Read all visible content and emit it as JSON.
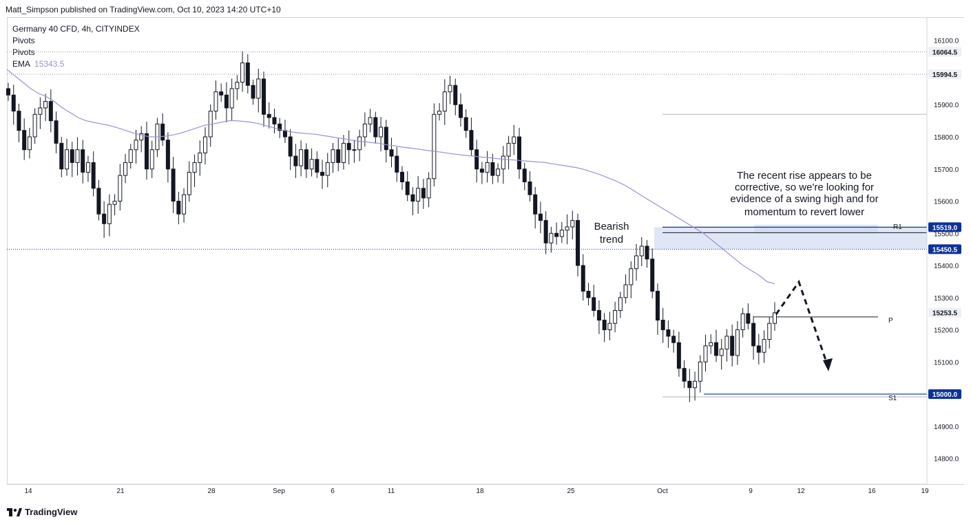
{
  "header": "Matt_Simpson published on TradingView.com, Oct 10, 2023 14:20 UTC+10",
  "legend": {
    "symbol": "Germany 40 CFD, 4h, CITYINDEX",
    "pivots1": "Pivots",
    "pivots2": "Pivots",
    "ema_label": "EMA",
    "ema_value": "15343.5"
  },
  "annotations": {
    "bearish_line1": "Bearish",
    "bearish_line2": "trend",
    "note_lines": [
      "The recent rise appears to be",
      "corrective, so we're looking for",
      "evidence of a swing high and for",
      "momentum to revert lower"
    ]
  },
  "pivot_labels": {
    "r1": "R1",
    "p": "P",
    "s1": "S1"
  },
  "footer": "TradingView",
  "colors": {
    "up": "#131722",
    "ema": "#9c8fd6",
    "zone": "#c5d3ee",
    "tag_dark": "#0c3299",
    "tag_light": "#eef0f4"
  },
  "chart_data": {
    "type": "candlestick",
    "ylim": [
      14720,
      16170
    ],
    "y_ticks": [
      14800,
      14900,
      15000,
      15100,
      15200,
      15300,
      15400,
      15500,
      15600,
      15700,
      15800,
      15900,
      16000,
      16100
    ],
    "y_tick_labels": [
      "14800.0",
      "14900.0",
      "15000.0",
      "15100.0",
      "15200.0",
      "15300.0",
      "15400.0",
      "15500.0",
      "15600.0",
      "15700.0",
      "15800.0",
      "15900.0",
      "16000.0",
      "16100.0"
    ],
    "x_ticks": [
      "14",
      "21",
      "28",
      "Sep",
      "6",
      "11",
      "18",
      "25",
      "Oct",
      "9",
      "12",
      "16",
      "19"
    ],
    "price_tags": [
      {
        "label": "16064.5",
        "value": 16064.5,
        "style": "light"
      },
      {
        "label": "15994.5",
        "value": 15994.5,
        "style": "light"
      },
      {
        "label": "15519.0",
        "value": 15519.0,
        "style": "dark"
      },
      {
        "label": "15450.5",
        "value": 15450.5,
        "style": "dark"
      },
      {
        "label": "15253.5",
        "value": 15253.5,
        "style": "light"
      },
      {
        "label": "15000.0",
        "value": 15000.0,
        "style": "dark"
      }
    ],
    "levels": [
      {
        "name": "dotted-high",
        "value": 16064.5
      },
      {
        "name": "dotted-2",
        "value": 15994.5
      },
      {
        "name": "dotted-support",
        "value": 15450.5
      },
      {
        "name": "pivot-line-upper",
        "value": 15870
      },
      {
        "name": "R1",
        "value": 15519
      },
      {
        "name": "R1-zone",
        "from": 15450.5,
        "to": 15519
      },
      {
        "name": "P",
        "value": 15240
      },
      {
        "name": "S1",
        "value": 15000
      }
    ],
    "series": [
      {
        "name": "Germany 40 CFD",
        "closes": [
          15930,
          15880,
          15820,
          15760,
          15800,
          15870,
          15890,
          15910,
          15850,
          15780,
          15700,
          15760,
          15720,
          15760,
          15690,
          15720,
          15640,
          15560,
          15530,
          15590,
          15600,
          15680,
          15720,
          15760,
          15790,
          15810,
          15700,
          15760,
          15840,
          15790,
          15700,
          15600,
          15560,
          15620,
          15690,
          15720,
          15750,
          15800,
          15880,
          15940,
          15930,
          15890,
          15950,
          15970,
          16030,
          15960,
          15920,
          15980,
          15870,
          15860,
          15840,
          15820,
          15800,
          15740,
          15710,
          15760,
          15700,
          15730,
          15690,
          15680,
          15720,
          15760,
          15720,
          15780,
          15760,
          15760,
          15800,
          15840,
          15860,
          15800,
          15830,
          15760,
          15740,
          15690,
          15660,
          15620,
          15600,
          15640,
          15610,
          15670,
          15870,
          15880,
          15940,
          15960,
          15900,
          15860,
          15820,
          15760,
          15700,
          15690,
          15720,
          15680,
          15700,
          15740,
          15780,
          15800,
          15700,
          15660,
          15620,
          15560,
          15540,
          15470,
          15500,
          15490,
          15510,
          15520,
          15540,
          15400,
          15320,
          15300,
          15260,
          15230,
          15200,
          15220,
          15260,
          15300,
          15340,
          15390,
          15430,
          15460,
          15420,
          15320,
          15230,
          15200,
          15180,
          15160,
          15080,
          15040,
          15020,
          15040,
          15100,
          15150,
          15160,
          15120,
          15140,
          15180,
          15120,
          15200,
          15250,
          15220,
          15150,
          15130,
          15170,
          15220,
          15253
        ],
        "ema": [
          16010,
          15990,
          15970,
          15950,
          15935,
          15925,
          15910,
          15890,
          15875,
          15860,
          15850,
          15845,
          15840,
          15835,
          15828,
          15820,
          15812,
          15806,
          15800,
          15800,
          15802,
          15806,
          15812,
          15820,
          15828,
          15836,
          15840,
          15845,
          15850,
          15850,
          15848,
          15845,
          15840,
          15833,
          15826,
          15820,
          15815,
          15812,
          15810,
          15808,
          15804,
          15800,
          15796,
          15792,
          15788,
          15785,
          15782,
          15780,
          15775,
          15772,
          15768,
          15765,
          15762,
          15758,
          15755,
          15752,
          15748,
          15745,
          15742,
          15740,
          15737,
          15735,
          15732,
          15730,
          15728,
          15726,
          15724,
          15722,
          15720,
          15716,
          15712,
          15708,
          15704,
          15698,
          15690,
          15682,
          15672,
          15662,
          15650,
          15636,
          15620,
          15605,
          15590,
          15575,
          15560,
          15545,
          15530,
          15515,
          15500,
          15480,
          15460,
          15440,
          15420,
          15400,
          15385,
          15370,
          15350,
          15343
        ]
      }
    ]
  }
}
